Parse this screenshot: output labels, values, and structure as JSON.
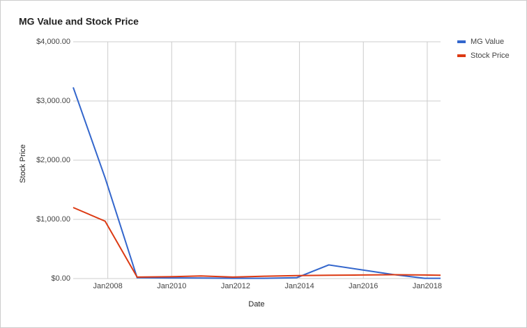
{
  "chart_data": {
    "type": "line",
    "title": "MG Value and Stock Price",
    "x_label": "Date",
    "y_label": "Stock Price",
    "x": [
      "2006-12",
      "2007-12",
      "2008-12",
      "2009-12",
      "2010-12",
      "2011-12",
      "2012-12",
      "2013-12",
      "2014-12",
      "2015-12",
      "2016-12",
      "2017-12",
      "2018-06"
    ],
    "series": [
      {
        "name": "MG Value",
        "color": "#3366cc",
        "values": [
          3230,
          1700,
          15,
          10,
          8,
          5,
          5,
          15,
          230,
          150,
          70,
          5,
          5
        ]
      },
      {
        "name": "Stock Price",
        "color": "#dc3912",
        "values": [
          1200,
          970,
          25,
          30,
          45,
          25,
          40,
          50,
          55,
          60,
          65,
          60,
          55
        ]
      }
    ],
    "xlim": [
      "2006-12",
      "2018-06"
    ],
    "xticks": [
      {
        "value": "2008-01",
        "label": "Jan2008"
      },
      {
        "value": "2010-01",
        "label": "Jan2010"
      },
      {
        "value": "2012-01",
        "label": "Jan2012"
      },
      {
        "value": "2014-01",
        "label": "Jan2014"
      },
      {
        "value": "2016-01",
        "label": "Jan2016"
      },
      {
        "value": "2018-01",
        "label": "Jan2018"
      }
    ],
    "ylim": [
      0,
      4000
    ],
    "yticks": [
      {
        "value": 0,
        "label": "$0.00"
      },
      {
        "value": 1000,
        "label": "$1,000.00"
      },
      {
        "value": 2000,
        "label": "$2,000.00"
      },
      {
        "value": 3000,
        "label": "$3,000.00"
      },
      {
        "value": 4000,
        "label": "$4,000.00"
      }
    ],
    "grid": true,
    "legend": "right"
  }
}
